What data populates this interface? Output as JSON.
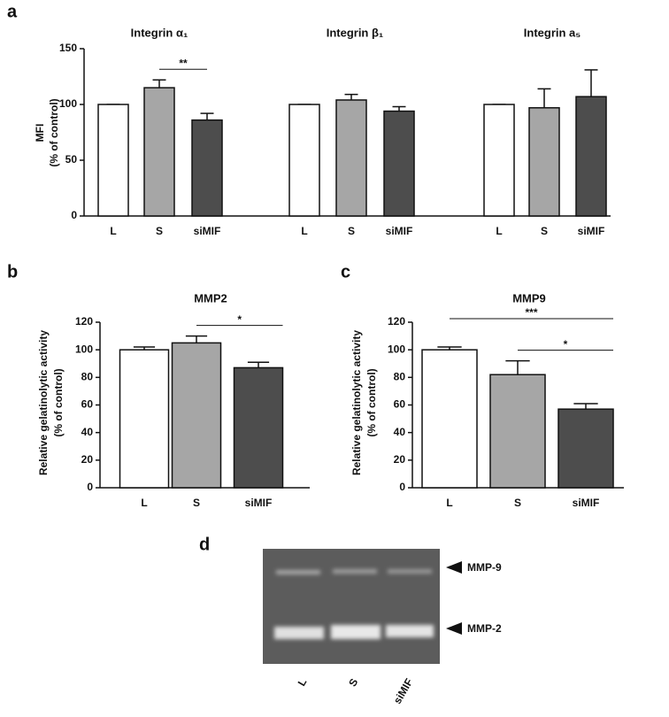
{
  "chart_data": [
    {
      "type": "bar",
      "panel": "a",
      "ylabel": [
        "MFI",
        "(% of control)"
      ],
      "ylim": [
        0,
        150
      ],
      "yticks": [
        0,
        50,
        100,
        150
      ],
      "colors": [
        "#ffffff",
        "#a6a6a6",
        "#4d4d4d"
      ],
      "groups": [
        {
          "title": "Integrin α₁",
          "categories": [
            "L",
            "S",
            "siMIF"
          ],
          "values": [
            100,
            115,
            86
          ],
          "errors": [
            0,
            7,
            6
          ],
          "annotations": [
            {
              "text": "**",
              "between": [
                "S",
                "siMIF"
              ]
            }
          ]
        },
        {
          "title": "Integrin β₁",
          "categories": [
            "L",
            "S",
            "siMIF"
          ],
          "values": [
            100,
            104,
            94
          ],
          "errors": [
            0,
            5,
            4
          ],
          "annotations": []
        },
        {
          "title": "Integrin a₅",
          "categories": [
            "L",
            "S",
            "siMIF"
          ],
          "values": [
            100,
            97,
            107
          ],
          "errors": [
            0,
            17,
            24
          ],
          "annotations": []
        }
      ]
    },
    {
      "type": "bar",
      "panel": "b",
      "title": "MMP2",
      "ylabel": [
        "Relative gelatinolytic activity",
        "(% of control)"
      ],
      "ylim": [
        0,
        120
      ],
      "yticks": [
        0,
        20,
        40,
        60,
        80,
        100,
        120
      ],
      "colors": [
        "#ffffff",
        "#a6a6a6",
        "#4d4d4d"
      ],
      "categories": [
        "L",
        "S",
        "siMIF"
      ],
      "values": [
        100,
        105,
        87
      ],
      "errors": [
        2,
        5,
        4
      ],
      "annotations": [
        {
          "text": "*",
          "between": [
            "S",
            "siMIF"
          ]
        }
      ]
    },
    {
      "type": "bar",
      "panel": "c",
      "title": "MMP9",
      "ylabel": [
        "Relative gelatinolytic activity",
        "(% of control)"
      ],
      "ylim": [
        0,
        120
      ],
      "yticks": [
        0,
        20,
        40,
        60,
        80,
        100,
        120
      ],
      "colors": [
        "#ffffff",
        "#a6a6a6",
        "#4d4d4d"
      ],
      "categories": [
        "L",
        "S",
        "siMIF"
      ],
      "values": [
        100,
        82,
        57
      ],
      "errors": [
        2,
        10,
        4
      ],
      "annotations": [
        {
          "text": "***",
          "between": [
            "L",
            "siMIF"
          ]
        },
        {
          "text": "*",
          "between": [
            "S",
            "siMIF"
          ]
        }
      ]
    }
  ],
  "gel": {
    "panel": "d",
    "lanes": [
      "L",
      "S",
      "siMIF"
    ],
    "bands": [
      "MMP-9",
      "MMP-2"
    ]
  }
}
